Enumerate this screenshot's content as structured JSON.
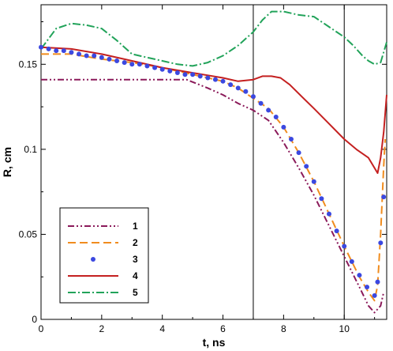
{
  "chart_data": {
    "type": "line",
    "xlabel": "t, ns",
    "ylabel": "R, cm",
    "xlim": [
      0,
      11.4
    ],
    "ylim": [
      0,
      0.185
    ],
    "x_ticks": [
      0,
      2,
      4,
      6,
      8,
      10
    ],
    "x_tick_labels": [
      "0",
      "2",
      "4",
      "6",
      "8",
      "10"
    ],
    "y_ticks": [
      0,
      0.05,
      0.1,
      0.15
    ],
    "y_tick_labels": [
      "0",
      "0.05",
      "0.1",
      "0.15"
    ],
    "vertical_lines": [
      7,
      10
    ],
    "grid": false,
    "legend_position": "bottom-left",
    "series": [
      {
        "name": "1",
        "style": "dash-dot-dot",
        "color": "#8b1a5a",
        "x": [
          0,
          1,
          2,
          3,
          4,
          4.8,
          5.5,
          6,
          6.5,
          7,
          7.5,
          8,
          8.5,
          9,
          9.5,
          10,
          10.5,
          10.8,
          11,
          11.2,
          11.3
        ],
        "y": [
          0.141,
          0.141,
          0.141,
          0.141,
          0.141,
          0.141,
          0.136,
          0.132,
          0.127,
          0.123,
          0.117,
          0.104,
          0.089,
          0.073,
          0.055,
          0.037,
          0.019,
          0.008,
          0.004,
          0.008,
          0.016
        ]
      },
      {
        "name": "2",
        "style": "dashed",
        "color": "#f08c1e",
        "x": [
          0,
          1,
          2,
          3,
          4,
          5,
          6,
          6.5,
          7,
          7.5,
          8,
          8.5,
          9,
          9.5,
          10,
          10.5,
          10.8,
          11,
          11.1,
          11.2,
          11.3,
          11.35
        ],
        "y": [
          0.156,
          0.156,
          0.153,
          0.151,
          0.148,
          0.144,
          0.14,
          0.136,
          0.13,
          0.124,
          0.113,
          0.098,
          0.081,
          0.062,
          0.043,
          0.025,
          0.016,
          0.011,
          0.02,
          0.05,
          0.09,
          0.106
        ]
      },
      {
        "name": "3",
        "style": "markers",
        "color": "#3b48e0",
        "x": [
          0,
          0.25,
          0.5,
          0.75,
          1,
          1.25,
          1.5,
          1.75,
          2,
          2.25,
          2.5,
          2.75,
          3,
          3.25,
          3.5,
          3.75,
          4,
          4.25,
          4.5,
          4.75,
          5,
          5.25,
          5.5,
          5.75,
          6,
          6.25,
          6.5,
          6.75,
          7,
          7.25,
          7.5,
          7.75,
          8,
          8.25,
          8.5,
          8.75,
          9,
          9.25,
          9.5,
          9.75,
          10,
          10.25,
          10.5,
          10.75,
          11,
          11.1,
          11.2,
          11.3
        ],
        "y": [
          0.16,
          0.159,
          0.158,
          0.158,
          0.157,
          0.156,
          0.155,
          0.155,
          0.154,
          0.153,
          0.152,
          0.151,
          0.15,
          0.15,
          0.149,
          0.148,
          0.147,
          0.146,
          0.145,
          0.144,
          0.144,
          0.143,
          0.142,
          0.141,
          0.14,
          0.138,
          0.136,
          0.134,
          0.131,
          0.127,
          0.123,
          0.119,
          0.113,
          0.106,
          0.098,
          0.09,
          0.081,
          0.071,
          0.062,
          0.052,
          0.043,
          0.034,
          0.026,
          0.019,
          0.014,
          0.022,
          0.045,
          0.072
        ]
      },
      {
        "name": "4",
        "style": "solid",
        "color": "#c42020",
        "x": [
          0,
          1,
          2,
          3,
          4,
          5,
          6,
          6.5,
          7,
          7.3,
          7.6,
          7.9,
          8.2,
          8.6,
          9,
          9.5,
          10,
          10.4,
          10.8,
          11.1,
          11.2,
          11.3,
          11.4
        ],
        "y": [
          0.16,
          0.159,
          0.156,
          0.152,
          0.148,
          0.145,
          0.142,
          0.14,
          0.141,
          0.143,
          0.143,
          0.142,
          0.138,
          0.131,
          0.124,
          0.115,
          0.106,
          0.1,
          0.095,
          0.086,
          0.095,
          0.11,
          0.132
        ]
      },
      {
        "name": "5",
        "style": "dash-dot",
        "color": "#22a35a",
        "x": [
          0,
          0.5,
          1,
          1.5,
          2,
          2.5,
          3,
          3.5,
          4,
          4.5,
          5,
          5.5,
          6,
          6.5,
          7,
          7.3,
          7.6,
          8,
          8.5,
          9,
          9.5,
          10,
          10.3,
          10.6,
          10.8,
          11,
          11.2,
          11.4
        ],
        "y": [
          0.159,
          0.171,
          0.174,
          0.173,
          0.171,
          0.164,
          0.156,
          0.154,
          0.152,
          0.15,
          0.149,
          0.151,
          0.155,
          0.161,
          0.169,
          0.176,
          0.181,
          0.181,
          0.179,
          0.178,
          0.172,
          0.166,
          0.161,
          0.155,
          0.152,
          0.15,
          0.151,
          0.163
        ]
      }
    ]
  }
}
